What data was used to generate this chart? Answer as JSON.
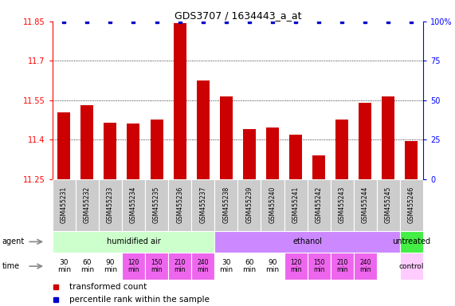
{
  "title": "GDS3707 / 1634443_a_at",
  "samples": [
    "GSM455231",
    "GSM455232",
    "GSM455233",
    "GSM455234",
    "GSM455235",
    "GSM455236",
    "GSM455237",
    "GSM455238",
    "GSM455239",
    "GSM455240",
    "GSM455241",
    "GSM455242",
    "GSM455243",
    "GSM455244",
    "GSM455245",
    "GSM455246"
  ],
  "bar_values": [
    11.505,
    11.53,
    11.465,
    11.46,
    11.475,
    11.845,
    11.625,
    11.565,
    11.44,
    11.445,
    11.42,
    11.34,
    11.475,
    11.54,
    11.565,
    11.395
  ],
  "bar_color": "#cc0000",
  "dot_color": "#0000cc",
  "ylim_left": [
    11.25,
    11.85
  ],
  "ylim_right": [
    0,
    100
  ],
  "yticks_left": [
    11.25,
    11.4,
    11.55,
    11.7,
    11.85
  ],
  "yticks_right": [
    0,
    25,
    50,
    75,
    100
  ],
  "ytick_labels_left": [
    "11.25",
    "11.4",
    "11.55",
    "11.7",
    "11.85"
  ],
  "ytick_labels_right": [
    "0",
    "25",
    "50",
    "75",
    "100%"
  ],
  "grid_values": [
    11.4,
    11.55,
    11.7
  ],
  "agent_groups": [
    {
      "label": "humidified air",
      "start": 0,
      "end": 7,
      "color": "#ccffcc"
    },
    {
      "label": "ethanol",
      "start": 7,
      "end": 15,
      "color": "#cc88ff"
    },
    {
      "label": "untreated",
      "start": 15,
      "end": 16,
      "color": "#44ee44"
    }
  ],
  "time_data": [
    {
      "idx": 0,
      "label": "30\nmin",
      "color": "#ffffff",
      "fontsize": 7
    },
    {
      "idx": 1,
      "label": "60\nmin",
      "color": "#ffffff",
      "fontsize": 7
    },
    {
      "idx": 2,
      "label": "90\nmin",
      "color": "#ffffff",
      "fontsize": 7
    },
    {
      "idx": 3,
      "label": "120\nmin",
      "color": "#ee66ee",
      "fontsize": 6
    },
    {
      "idx": 4,
      "label": "150\nmin",
      "color": "#ee66ee",
      "fontsize": 6
    },
    {
      "idx": 5,
      "label": "210\nmin",
      "color": "#ee66ee",
      "fontsize": 6
    },
    {
      "idx": 6,
      "label": "240\nmin",
      "color": "#ee66ee",
      "fontsize": 6
    },
    {
      "idx": 7,
      "label": "30\nmin",
      "color": "#ffffff",
      "fontsize": 7
    },
    {
      "idx": 8,
      "label": "60\nmin",
      "color": "#ffffff",
      "fontsize": 7
    },
    {
      "idx": 9,
      "label": "90\nmin",
      "color": "#ffffff",
      "fontsize": 7
    },
    {
      "idx": 10,
      "label": "120\nmin",
      "color": "#ee66ee",
      "fontsize": 6
    },
    {
      "idx": 11,
      "label": "150\nmin",
      "color": "#ee66ee",
      "fontsize": 6
    },
    {
      "idx": 12,
      "label": "210\nmin",
      "color": "#ee66ee",
      "fontsize": 6
    },
    {
      "idx": 13,
      "label": "240\nmin",
      "color": "#ee66ee",
      "fontsize": 6
    },
    {
      "idx": 15,
      "label": "control",
      "color": "#ffccff",
      "fontsize": 7
    }
  ],
  "bar_bottom": 11.25,
  "header_bg": "#cccccc",
  "n_samples": 16
}
